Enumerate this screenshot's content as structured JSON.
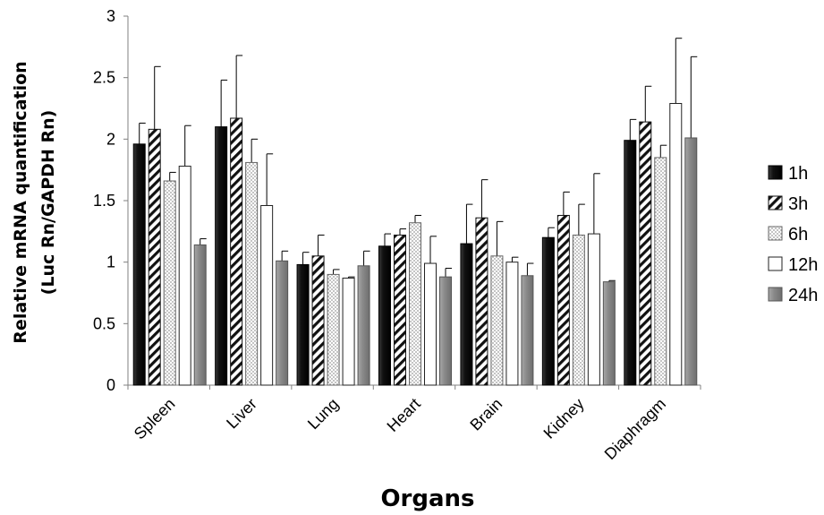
{
  "chart_data": {
    "type": "bar",
    "title": "",
    "xlabel": "Organs",
    "ylabel_line1": "Relative mRNA  quantification",
    "ylabel_line2": "(Luc Rn/GAPDH Rn)",
    "ylim": [
      0,
      3
    ],
    "yticks": [
      "0",
      "0.5",
      "1",
      "1.5",
      "2",
      "2.5",
      "3"
    ],
    "grid": false,
    "legend_position": "right",
    "categories": [
      "Spleen",
      "Liver",
      "Lung",
      "Heart",
      "Brain",
      "Kidney",
      "Diaphragm"
    ],
    "series": [
      {
        "name": "1h",
        "pattern": "solid-black",
        "values": [
          1.96,
          2.1,
          0.98,
          1.13,
          1.15,
          1.2,
          1.99
        ],
        "errors": [
          0.17,
          0.38,
          0.1,
          0.1,
          0.32,
          0.08,
          0.17
        ]
      },
      {
        "name": "3h",
        "pattern": "diagonal-hatch",
        "values": [
          2.08,
          2.17,
          1.05,
          1.22,
          1.36,
          1.38,
          2.14
        ],
        "errors": [
          0.51,
          0.51,
          0.17,
          0.05,
          0.31,
          0.19,
          0.29
        ]
      },
      {
        "name": "6h",
        "pattern": "dotted",
        "values": [
          1.66,
          1.81,
          0.9,
          1.32,
          1.05,
          1.22,
          1.85
        ],
        "errors": [
          0.07,
          0.19,
          0.04,
          0.06,
          0.28,
          0.25,
          0.1
        ]
      },
      {
        "name": "12h",
        "pattern": "white",
        "values": [
          1.78,
          1.46,
          0.87,
          0.99,
          1.0,
          1.23,
          2.29
        ],
        "errors": [
          0.33,
          0.42,
          0.01,
          0.22,
          0.04,
          0.49,
          0.53
        ]
      },
      {
        "name": "24h",
        "pattern": "solid-gray",
        "values": [
          1.14,
          1.01,
          0.97,
          0.88,
          0.89,
          0.84,
          2.01
        ],
        "errors": [
          0.05,
          0.08,
          0.12,
          0.07,
          0.1,
          0.01,
          0.66
        ]
      }
    ],
    "colors": {
      "solid_black": "#111111",
      "gray_bar": "#8a8a8a",
      "dot_color": "#9a9a9a",
      "axis": "#808080"
    }
  }
}
